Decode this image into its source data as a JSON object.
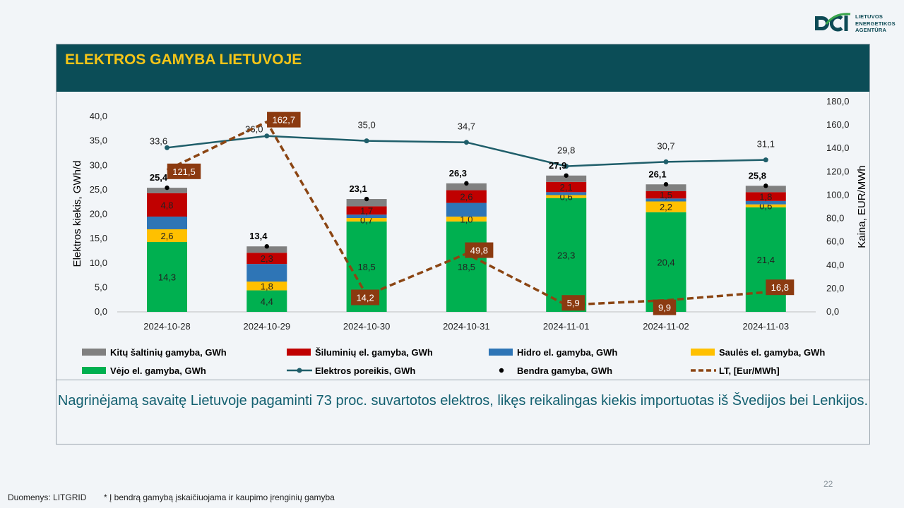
{
  "logo": {
    "line1": "LIETUVOS",
    "line2": "ENERGETIKOS",
    "line3": "AGENTŪRA"
  },
  "title": "ELEKTROS GAMYBA LIETUVOJE",
  "summary": "Nagrinėjamą savaitę Lietuvoje pagaminti 73 proc. suvartotos elektros, likęs reikalingas kiekis importuotas iš Švedijos bei Lenkijos.",
  "page_number": "22",
  "source": "Duomenys: LITGRID",
  "note": "* Į bendrą gamybą įskaičiuojama ir kaupimo įrenginių gamyba",
  "colors": {
    "other": "#808080",
    "thermal": "#c00000",
    "hydro": "#2e75b6",
    "solar": "#ffc000",
    "wind": "#00b050",
    "demand": "#1f5e6a",
    "total": "#000000",
    "price": "#8b4513",
    "price_label_bg": "#8b3a10"
  },
  "chart_data": {
    "type": "bar",
    "categories": [
      "2024-10-28",
      "2024-10-29",
      "2024-10-30",
      "2024-10-31",
      "2024-11-01",
      "2024-11-02",
      "2024-11-03"
    ],
    "ylabel": "Elektros kiekis, GWh/d",
    "y2label": "Kaina, EUR/MWh",
    "ylim": [
      0,
      40
    ],
    "y2lim": [
      0,
      180
    ],
    "yticks": [
      "0,0",
      "5,0",
      "10,0",
      "15,0",
      "20,0",
      "25,0",
      "30,0",
      "35,0",
      "40,0"
    ],
    "y2ticks": [
      "0,0",
      "20,0",
      "40,0",
      "60,0",
      "80,0",
      "100,0",
      "120,0",
      "140,0",
      "160,0",
      "180,0"
    ],
    "series": [
      {
        "name": "Vėjo el. gamyba, GWh",
        "key": "wind",
        "values": [
          14.3,
          4.4,
          18.5,
          18.5,
          23.3,
          20.4,
          21.4
        ],
        "labels": [
          "14,3",
          "4,4",
          "18,5",
          "18,5",
          "23,3",
          "20,4",
          "21,4"
        ]
      },
      {
        "name": "Saulės el. gamyba, GWh",
        "key": "solar",
        "values": [
          2.6,
          1.8,
          0.7,
          1.0,
          0.6,
          2.2,
          0.6
        ],
        "labels": [
          "2,6",
          "1,8",
          "0,7",
          "1,0",
          "0,6",
          "2,2",
          "0,6"
        ]
      },
      {
        "name": "Hidro el. gamyba, GWh",
        "key": "hydro",
        "values": [
          2.6,
          3.6,
          0.7,
          2.8,
          0.6,
          0.6,
          0.7
        ],
        "labels": [
          "",
          "",
          "",
          "",
          "",
          "",
          ""
        ]
      },
      {
        "name": "Šiluminių el. gamyba, GWh",
        "key": "thermal",
        "values": [
          4.8,
          2.3,
          1.7,
          2.6,
          2.1,
          1.5,
          1.8
        ],
        "labels": [
          "4,8",
          "2,3",
          "1,7",
          "2,6",
          "2,1",
          "1,5",
          "1,8"
        ]
      },
      {
        "name": "Kitų šaltinių gamyba,  GWh",
        "key": "other",
        "values": [
          1.1,
          1.3,
          1.5,
          1.4,
          1.3,
          1.4,
          1.3
        ],
        "labels": [
          "",
          "",
          "",
          "",
          "",
          "",
          ""
        ]
      }
    ],
    "total": {
      "name": "Bendra gamyba, GWh",
      "values": [
        25.4,
        13.4,
        23.1,
        26.3,
        27.9,
        26.1,
        25.8
      ],
      "labels": [
        "25,4",
        "13,4",
        "23,1",
        "26,3",
        "27,9",
        "26,1",
        "25,8"
      ]
    },
    "demand": {
      "name": "Elektros poreikis, GWh",
      "values": [
        33.6,
        36.0,
        35.0,
        34.7,
        29.8,
        30.7,
        31.1
      ],
      "labels": [
        "33,6",
        "36,0",
        "35,0",
        "34,7",
        "29,8",
        "30,7",
        "31,1"
      ]
    },
    "price": {
      "name": "LT, [Eur/MWh]",
      "values": [
        121.5,
        162.7,
        14.2,
        49.8,
        5.9,
        9.9,
        16.8
      ],
      "labels": [
        "121,5",
        "162,7",
        "14,2",
        "49,8",
        "5,9",
        "9,9",
        "16,8"
      ]
    },
    "legend": [
      [
        "Kitų šaltinių gamyba,  GWh",
        "Šiluminių el. gamyba, GWh",
        "Hidro el. gamyba, GWh",
        "Saulės el. gamyba, GWh"
      ],
      [
        "Vėjo el. gamyba, GWh",
        "Elektros poreikis, GWh",
        "Bendra gamyba, GWh",
        "LT, [Eur/MWh]"
      ]
    ],
    "legend_position": "bottom",
    "grid": false
  }
}
